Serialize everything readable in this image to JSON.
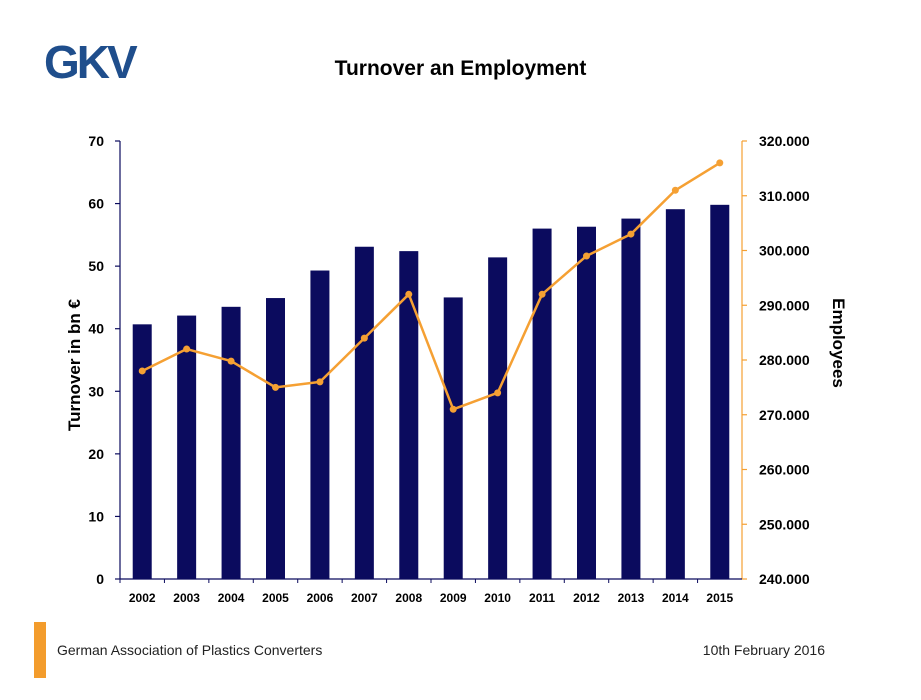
{
  "header": {
    "logo_text": "GKV",
    "title": "Turnover an Employment"
  },
  "footer": {
    "organization": "German Association of Plastics Converters",
    "date": "10th February 2016"
  },
  "colors": {
    "bar": "#0B0B5E",
    "line": "#F5A033",
    "logo": "#1F4E8C",
    "accent": "#F39C2C"
  },
  "chart_data": {
    "type": "bar",
    "categories": [
      "2002",
      "2003",
      "2004",
      "2005",
      "2006",
      "2007",
      "2008",
      "2009",
      "2010",
      "2011",
      "2012",
      "2013",
      "2014",
      "2015"
    ],
    "series": [
      {
        "type": "bar",
        "axis": "left",
        "values": [
          40.7,
          42.1,
          43.5,
          44.9,
          49.3,
          53.1,
          52.4,
          45.0,
          51.4,
          56.0,
          56.3,
          57.6,
          59.1,
          59.8
        ]
      },
      {
        "type": "line",
        "axis": "right",
        "values": [
          278000,
          282000,
          279800,
          275000,
          276000,
          284000,
          292000,
          271000,
          274000,
          292000,
          299000,
          303000,
          311000,
          316000
        ]
      }
    ],
    "ylabel": "Turnover in bn €",
    "y2label": "Employees",
    "ylim": [
      0,
      70
    ],
    "y2lim": [
      240000,
      320000
    ],
    "yticks": [
      "0",
      "10",
      "20",
      "30",
      "40",
      "50",
      "60",
      "70"
    ],
    "y2ticks": [
      "240.000",
      "250.000",
      "260.000",
      "270.000",
      "280.000",
      "290.000",
      "300.000",
      "310.000",
      "320.000"
    ],
    "grid": false,
    "legend": "none"
  }
}
